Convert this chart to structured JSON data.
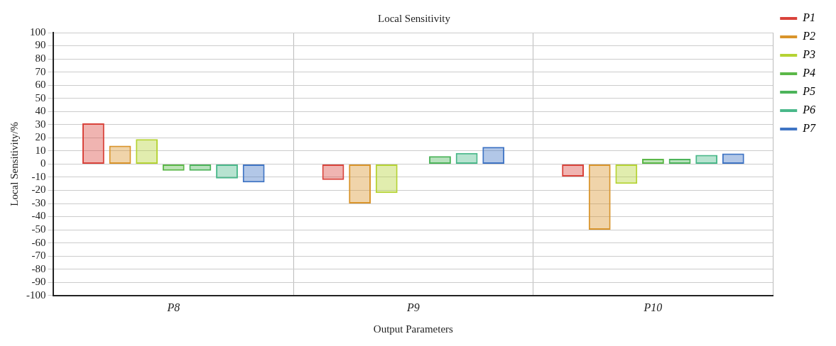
{
  "chart_data": {
    "type": "bar",
    "title": "Local Sensitivity",
    "xlabel": "Output Parameters",
    "ylabel": "Local Sensitivity/%",
    "categories": [
      "P8",
      "P9",
      "P10"
    ],
    "series": [
      {
        "name": "P1",
        "color": "#d9433b",
        "values": [
          31,
          -12,
          -9.5
        ]
      },
      {
        "name": "P2",
        "color": "#d9942a",
        "values": [
          14,
          -30,
          -50
        ]
      },
      {
        "name": "P3",
        "color": "#b5d334",
        "values": [
          19,
          -22,
          -15
        ]
      },
      {
        "name": "P4",
        "color": "#5bb848",
        "values": [
          -5,
          0,
          4
        ]
      },
      {
        "name": "P5",
        "color": "#4cb45a",
        "values": [
          -5,
          6,
          4
        ]
      },
      {
        "name": "P6",
        "color": "#4ab88a",
        "values": [
          -11,
          8.5,
          7
        ]
      },
      {
        "name": "P7",
        "color": "#3f74c4",
        "values": [
          -14,
          13,
          8
        ]
      }
    ],
    "ylim": [
      -100,
      100
    ],
    "yticks": [
      -100,
      -90,
      -80,
      -70,
      -60,
      -50,
      -40,
      -30,
      -20,
      -10,
      0,
      10,
      20,
      30,
      40,
      50,
      60,
      70,
      80,
      90,
      100
    ],
    "grid": true,
    "legend": "top right"
  }
}
